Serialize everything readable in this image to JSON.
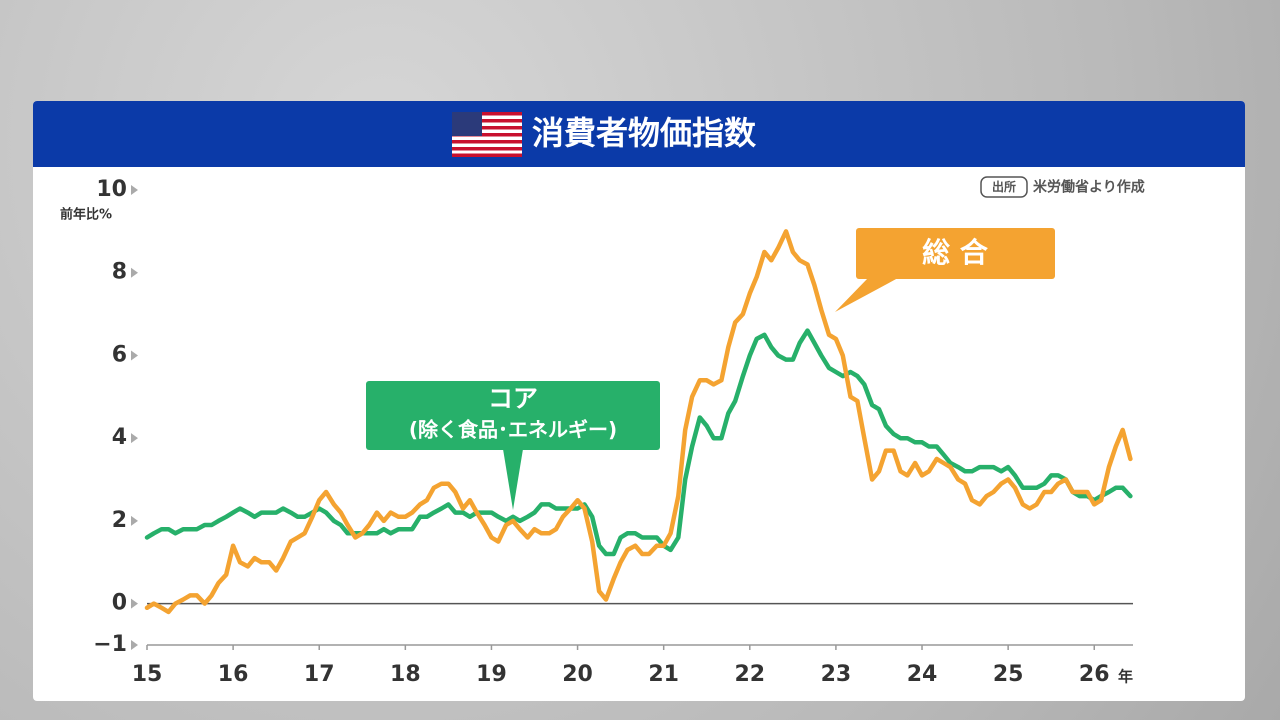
{
  "chart_data": {
    "type": "line",
    "title": "消費者物価指数",
    "source_badge": "出所",
    "source": "米労働省より作成",
    "y_unit": "前年比%",
    "x_unit": "年",
    "annotations": [
      "(除く食品･エネルギー)"
    ],
    "xlim": [
      15,
      26.45
    ],
    "xticks": [
      15,
      16,
      17,
      18,
      19,
      20,
      21,
      22,
      23,
      24,
      25,
      26
    ],
    "ylim": [
      -1,
      10
    ],
    "yticks": [
      10,
      8,
      6,
      4,
      2,
      0,
      {
        "value": -1,
        "label": "−1"
      }
    ],
    "x": [
      15,
      15.08,
      15.17,
      15.25,
      15.33,
      15.42,
      15.5,
      15.58,
      15.67,
      15.75,
      15.83,
      15.92,
      16,
      16.08,
      16.17,
      16.25,
      16.33,
      16.42,
      16.5,
      16.58,
      16.67,
      16.75,
      16.83,
      16.92,
      17,
      17.08,
      17.17,
      17.25,
      17.33,
      17.42,
      17.5,
      17.58,
      17.67,
      17.75,
      17.83,
      17.92,
      18,
      18.08,
      18.17,
      18.25,
      18.33,
      18.42,
      18.5,
      18.58,
      18.67,
      18.75,
      18.83,
      18.92,
      19,
      19.08,
      19.17,
      19.25,
      19.33,
      19.42,
      19.5,
      19.58,
      19.67,
      19.75,
      19.83,
      19.92,
      20,
      20.08,
      20.17,
      20.25,
      20.33,
      20.42,
      20.5,
      20.58,
      20.67,
      20.75,
      20.83,
      20.92,
      21,
      21.08,
      21.17,
      21.25,
      21.33,
      21.42,
      21.5,
      21.58,
      21.67,
      21.75,
      21.83,
      21.92,
      22,
      22.08,
      22.17,
      22.25,
      22.33,
      22.42,
      22.5,
      22.58,
      22.67,
      22.75,
      22.83,
      22.92,
      23,
      23.08,
      23.17,
      23.25,
      23.33,
      23.42,
      23.5,
      23.58,
      23.67,
      23.75,
      23.83,
      23.92,
      24,
      24.08,
      24.17,
      24.25,
      24.33,
      24.42,
      24.5,
      24.58,
      24.67,
      24.75,
      24.83,
      24.92,
      25,
      25.08,
      25.17,
      25.25,
      25.33,
      25.42,
      25.5,
      25.58,
      25.67,
      25.75,
      25.83,
      25.92,
      26,
      26.08,
      26.17,
      26.25,
      26.33,
      26.42
    ],
    "series": [
      {
        "name": "コア",
        "color": "#27b06a",
        "values": [
          1.6,
          1.7,
          1.8,
          1.8,
          1.7,
          1.8,
          1.8,
          1.8,
          1.9,
          1.9,
          2.0,
          2.1,
          2.2,
          2.3,
          2.2,
          2.1,
          2.2,
          2.2,
          2.2,
          2.3,
          2.2,
          2.1,
          2.1,
          2.2,
          2.3,
          2.2,
          2.0,
          1.9,
          1.7,
          1.7,
          1.7,
          1.7,
          1.7,
          1.8,
          1.7,
          1.8,
          1.8,
          1.8,
          2.1,
          2.1,
          2.2,
          2.3,
          2.4,
          2.2,
          2.2,
          2.1,
          2.2,
          2.2,
          2.2,
          2.1,
          2.0,
          2.1,
          2.0,
          2.1,
          2.2,
          2.4,
          2.4,
          2.3,
          2.3,
          2.3,
          2.3,
          2.4,
          2.1,
          1.4,
          1.2,
          1.2,
          1.6,
          1.7,
          1.7,
          1.6,
          1.6,
          1.6,
          1.4,
          1.3,
          1.6,
          3.0,
          3.8,
          4.5,
          4.3,
          4.0,
          4.0,
          4.6,
          4.9,
          5.5,
          6.0,
          6.4,
          6.5,
          6.2,
          6.0,
          5.9,
          5.9,
          6.3,
          6.6,
          6.3,
          6.0,
          5.7,
          5.6,
          5.5,
          5.6,
          5.5,
          5.3,
          4.8,
          4.7,
          4.3,
          4.1,
          4.0,
          4.0,
          3.9,
          3.9,
          3.8,
          3.8,
          3.6,
          3.4,
          3.3,
          3.2,
          3.2,
          3.3,
          3.3,
          3.3,
          3.2,
          3.3,
          3.1,
          2.8,
          2.8,
          2.8,
          2.9,
          3.1,
          3.1,
          3.0,
          2.7,
          2.6,
          2.6,
          2.5,
          2.6,
          2.7,
          2.8,
          2.8,
          2.6
        ]
      },
      {
        "name": "総 合",
        "color": "#f4a331",
        "values": [
          -0.1,
          0.0,
          -0.1,
          -0.2,
          0.0,
          0.1,
          0.2,
          0.2,
          0.0,
          0.2,
          0.5,
          0.7,
          1.4,
          1.0,
          0.9,
          1.1,
          1.0,
          1.0,
          0.8,
          1.1,
          1.5,
          1.6,
          1.7,
          2.1,
          2.5,
          2.7,
          2.4,
          2.2,
          1.9,
          1.6,
          1.7,
          1.9,
          2.2,
          2.0,
          2.2,
          2.1,
          2.1,
          2.2,
          2.4,
          2.5,
          2.8,
          2.9,
          2.9,
          2.7,
          2.3,
          2.5,
          2.2,
          1.9,
          1.6,
          1.5,
          1.9,
          2.0,
          1.8,
          1.6,
          1.8,
          1.7,
          1.7,
          1.8,
          2.1,
          2.3,
          2.5,
          2.3,
          1.5,
          0.3,
          0.1,
          0.6,
          1.0,
          1.3,
          1.4,
          1.2,
          1.2,
          1.4,
          1.4,
          1.7,
          2.6,
          4.2,
          5.0,
          5.4,
          5.4,
          5.3,
          5.4,
          6.2,
          6.8,
          7.0,
          7.5,
          7.9,
          8.5,
          8.3,
          8.6,
          9.0,
          8.5,
          8.3,
          8.2,
          7.7,
          7.1,
          6.5,
          6.4,
          6.0,
          5.0,
          4.9,
          4.0,
          3.0,
          3.2,
          3.7,
          3.7,
          3.2,
          3.1,
          3.4,
          3.1,
          3.2,
          3.5,
          3.4,
          3.3,
          3.0,
          2.9,
          2.5,
          2.4,
          2.6,
          2.7,
          2.9,
          3.0,
          2.8,
          2.4,
          2.3,
          2.4,
          2.7,
          2.7,
          2.9,
          3.0,
          2.7,
          2.7,
          2.7,
          2.4,
          2.5,
          3.3,
          3.8,
          4.2,
          3.5
        ]
      }
    ]
  }
}
